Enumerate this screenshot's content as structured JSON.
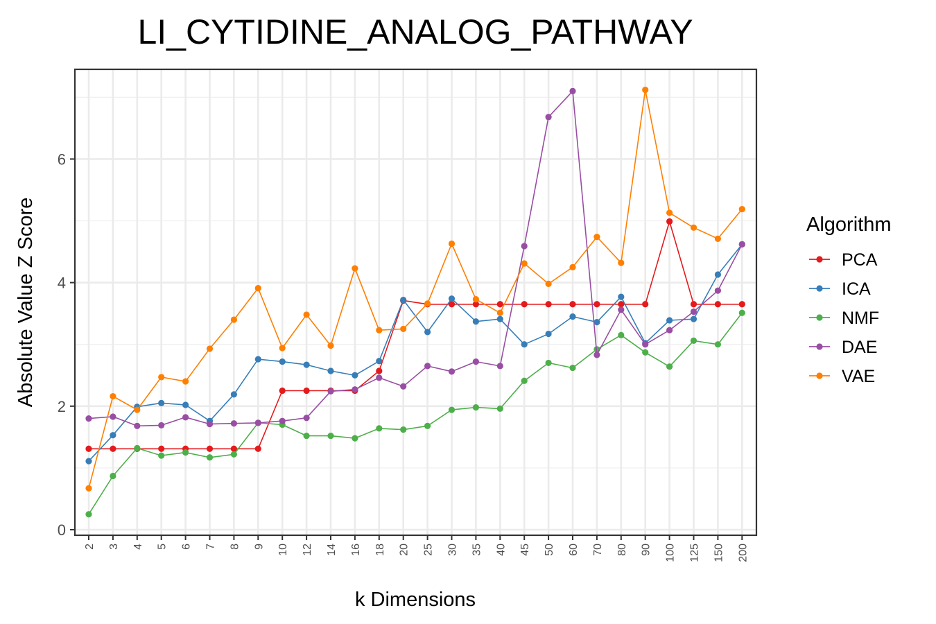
{
  "chart_data": {
    "type": "line",
    "title": "LI_CYTIDINE_ANALOG_PATHWAY",
    "xlabel": "k Dimensions",
    "ylabel": "Absolute Value Z Score",
    "categories": [
      "2",
      "3",
      "4",
      "5",
      "6",
      "7",
      "8",
      "9",
      "10",
      "12",
      "14",
      "16",
      "18",
      "20",
      "25",
      "30",
      "35",
      "40",
      "45",
      "50",
      "60",
      "70",
      "80",
      "90",
      "100",
      "125",
      "150",
      "200"
    ],
    "ylim": [
      -0.1,
      7.4
    ],
    "yticks": [
      0,
      2,
      4,
      6
    ],
    "grid": true,
    "legend": {
      "title": "Algorithm",
      "position": "right"
    },
    "series": [
      {
        "name": "PCA",
        "color": "#E41A1C",
        "values": [
          1.31,
          1.31,
          1.31,
          1.31,
          1.31,
          1.31,
          1.31,
          1.31,
          2.25,
          2.25,
          2.25,
          2.25,
          2.57,
          3.71,
          3.65,
          3.65,
          3.65,
          3.65,
          3.65,
          3.65,
          3.65,
          3.65,
          3.65,
          3.65,
          4.99,
          3.65,
          3.65,
          3.65
        ]
      },
      {
        "name": "ICA",
        "color": "#377EB8",
        "values": [
          1.11,
          1.53,
          1.99,
          2.05,
          2.02,
          1.76,
          2.19,
          2.76,
          2.72,
          2.67,
          2.57,
          2.5,
          2.73,
          3.72,
          3.2,
          3.74,
          3.37,
          3.41,
          3.0,
          3.17,
          3.45,
          3.36,
          3.77,
          3.02,
          3.39,
          3.41,
          4.13,
          4.62
        ]
      },
      {
        "name": "NMF",
        "color": "#4DAF4A",
        "values": [
          0.25,
          0.87,
          1.32,
          1.2,
          1.25,
          1.17,
          1.22,
          1.73,
          1.7,
          1.52,
          1.52,
          1.48,
          1.64,
          1.62,
          1.68,
          1.94,
          1.98,
          1.96,
          2.41,
          2.7,
          2.62,
          2.92,
          3.15,
          2.87,
          2.64,
          3.06,
          3.0,
          3.51
        ]
      },
      {
        "name": "DAE",
        "color": "#984EA3",
        "values": [
          1.8,
          1.83,
          1.68,
          1.69,
          1.82,
          1.71,
          1.72,
          1.73,
          1.76,
          1.81,
          2.24,
          2.27,
          2.46,
          2.32,
          2.65,
          2.56,
          2.72,
          2.65,
          4.59,
          6.68,
          7.1,
          2.83,
          3.56,
          3.0,
          3.23,
          3.53,
          3.87,
          4.62
        ]
      },
      {
        "name": "VAE",
        "color": "#FF7F00",
        "values": [
          0.67,
          2.16,
          1.94,
          2.47,
          2.4,
          2.93,
          3.4,
          3.91,
          2.94,
          3.48,
          2.98,
          4.23,
          3.23,
          3.25,
          3.66,
          4.63,
          3.73,
          3.51,
          4.31,
          3.98,
          4.25,
          4.74,
          4.32,
          7.12,
          5.13,
          4.89,
          4.71,
          5.19
        ]
      }
    ]
  }
}
